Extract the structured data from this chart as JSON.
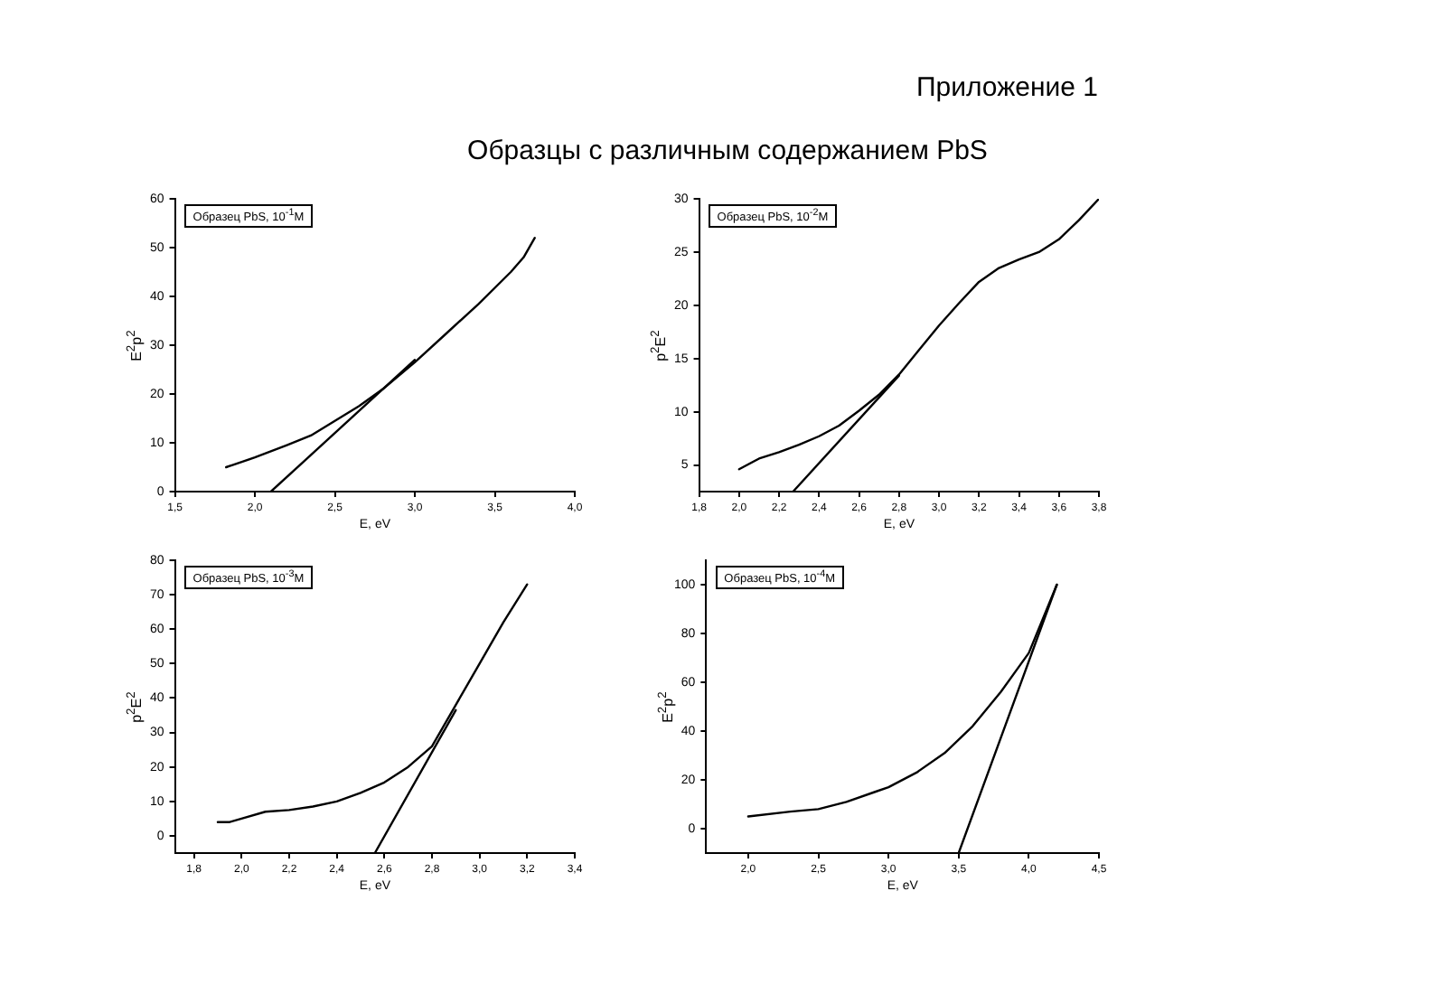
{
  "chart_data": [
    {
      "type": "line",
      "title": "Образцы с различным содержанием PbS",
      "xlabel": "E, eV",
      "ylabel": "E$^{2}$p$^{2}$",
      "annotations": [
        "Образец PbS, 10$^{-1}$M"
      ],
      "xlim": [
        1.5,
        4.0
      ],
      "ylim": [
        0,
        60
      ],
      "xticks": [
        {
          "value": 1.5,
          "label": "1,5"
        },
        {
          "value": 2.0,
          "label": "2,0"
        },
        {
          "value": 2.5,
          "label": "2,5"
        },
        {
          "value": 3.0,
          "label": "3,0"
        },
        {
          "value": 3.5,
          "label": "3,5"
        },
        {
          "value": 4.0,
          "label": "4,0"
        }
      ],
      "yticks": [
        0,
        10,
        20,
        30,
        40,
        50,
        60
      ],
      "grid": false,
      "legend": false,
      "marker": "none",
      "line_style": "solid",
      "series": [
        {
          "color": "#000000",
          "x": [
            1.82,
            2.0,
            2.2,
            2.35,
            2.5,
            2.65,
            2.8,
            3.0,
            3.2,
            3.4,
            3.6,
            3.68,
            3.75
          ],
          "values": [
            5,
            7,
            9.5,
            11.5,
            14.5,
            17.5,
            21,
            26.5,
            32.5,
            38.5,
            45,
            48,
            52
          ]
        },
        {
          "color": "#000000",
          "x": [
            2.1,
            3.0
          ],
          "values": [
            0,
            27
          ]
        }
      ]
    },
    {
      "type": "line",
      "subtitle": "Приложение 1",
      "xlabel": "E, eV",
      "ylabel": "p$^{2}$E$^{2}$",
      "annotations": [
        "Образец PbS, 10$^{-2}$M"
      ],
      "xlim": [
        1.8,
        3.8
      ],
      "ylim": [
        2.5,
        30
      ],
      "xticks": [
        {
          "value": 1.8,
          "label": "1,8"
        },
        {
          "value": 2.0,
          "label": "2,0"
        },
        {
          "value": 2.2,
          "label": "2,2"
        },
        {
          "value": 2.4,
          "label": "2,4"
        },
        {
          "value": 2.6,
          "label": "2,6"
        },
        {
          "value": 2.8,
          "label": "2,8"
        },
        {
          "value": 3.0,
          "label": "3,0"
        },
        {
          "value": 3.2,
          "label": "3,2"
        },
        {
          "value": 3.4,
          "label": "3,4"
        },
        {
          "value": 3.6,
          "label": "3,6"
        },
        {
          "value": 3.8,
          "label": "3,8"
        }
      ],
      "yticks": [
        5,
        10,
        15,
        20,
        25,
        30
      ],
      "grid": false,
      "legend": false,
      "marker": "none",
      "line_style": "solid",
      "series": [
        {
          "color": "#000000",
          "x": [
            2.0,
            2.1,
            2.2,
            2.3,
            2.4,
            2.5,
            2.6,
            2.7,
            2.8,
            2.9,
            3.0,
            3.1,
            3.2,
            3.3,
            3.4,
            3.5,
            3.6,
            3.7,
            3.8
          ],
          "values": [
            4.6,
            5.6,
            6.2,
            6.9,
            7.7,
            8.7,
            10.1,
            11.6,
            13.5,
            15.8,
            18.1,
            20.2,
            22.2,
            23.5,
            24.3,
            25.0,
            26.2,
            28.0,
            30
          ]
        },
        {
          "color": "#000000",
          "x": [
            2.27,
            2.8
          ],
          "values": [
            2.5,
            13.4
          ]
        }
      ]
    },
    {
      "type": "line",
      "xlabel": "E, eV",
      "ylabel": "p$^{2}$E$^{2}$",
      "annotations": [
        "Образец PbS, 10$^{-3}$M"
      ],
      "xlim": [
        1.72,
        3.4
      ],
      "ylim": [
        -5,
        80
      ],
      "xticks": [
        {
          "value": 1.8,
          "label": "1,8"
        },
        {
          "value": 2.0,
          "label": "2,0"
        },
        {
          "value": 2.2,
          "label": "2,2"
        },
        {
          "value": 2.4,
          "label": "2,4"
        },
        {
          "value": 2.6,
          "label": "2,6"
        },
        {
          "value": 2.8,
          "label": "2,8"
        },
        {
          "value": 3.0,
          "label": "3,0"
        },
        {
          "value": 3.2,
          "label": "3,2"
        },
        {
          "value": 3.4,
          "label": "3,4"
        }
      ],
      "yticks": [
        0,
        10,
        20,
        30,
        40,
        50,
        60,
        70,
        80
      ],
      "grid": false,
      "legend": false,
      "marker": "none",
      "line_style": "solid",
      "series": [
        {
          "color": "#000000",
          "x": [
            1.9,
            1.95,
            2.0,
            2.1,
            2.2,
            2.3,
            2.4,
            2.5,
            2.6,
            2.7,
            2.8,
            2.9,
            3.0,
            3.1,
            3.2
          ],
          "values": [
            4,
            4,
            5,
            7,
            7.5,
            8.5,
            10,
            12.5,
            15.5,
            20,
            26,
            38,
            50,
            62,
            73
          ]
        },
        {
          "color": "#000000",
          "x": [
            2.56,
            2.9
          ],
          "values": [
            -5,
            36.5
          ]
        }
      ]
    },
    {
      "type": "line",
      "xlabel": "E, eV",
      "ylabel": "E$^{2}$p$^{2}$",
      "annotations": [
        "Образец PbS, 10$^{-4}$M"
      ],
      "xlim": [
        1.7,
        4.5
      ],
      "ylim": [
        -10,
        110
      ],
      "xticks": [
        {
          "value": 2.0,
          "label": "2,0"
        },
        {
          "value": 2.5,
          "label": "2,5"
        },
        {
          "value": 3.0,
          "label": "3,0"
        },
        {
          "value": 3.5,
          "label": "3,5"
        },
        {
          "value": 4.0,
          "label": "4,0"
        },
        {
          "value": 4.5,
          "label": "4,5"
        }
      ],
      "yticks": [
        0,
        20,
        40,
        60,
        80,
        100
      ],
      "grid": false,
      "legend": false,
      "marker": "none",
      "line_style": "solid",
      "series": [
        {
          "color": "#000000",
          "x": [
            2.0,
            2.3,
            2.5,
            2.7,
            2.9,
            3.0,
            3.2,
            3.4,
            3.6,
            3.8,
            4.0,
            4.2
          ],
          "values": [
            5,
            7,
            8,
            11,
            15,
            17,
            23,
            31,
            42,
            56,
            72,
            100
          ]
        },
        {
          "color": "#000000",
          "x": [
            3.5,
            4.2
          ],
          "values": [
            -10,
            100
          ]
        }
      ]
    }
  ]
}
